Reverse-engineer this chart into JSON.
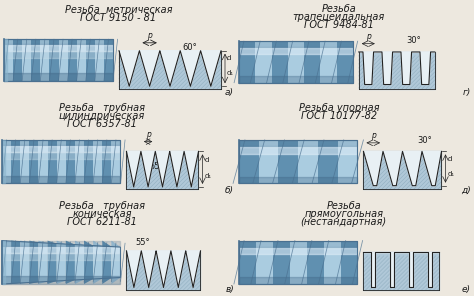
{
  "bg_color": "#ede8df",
  "text_color": "#1a1a1a",
  "line_color": "#222222",
  "sections": [
    {
      "title1": "Резьба  метрическая",
      "title2": "ГОСТ 9150 - 81",
      "title3": "",
      "angle": "60°",
      "letter": "а)",
      "col": 0,
      "row": 0
    },
    {
      "title1": "Резьба   трубная",
      "title2": "цилиндрическая",
      "title3": "ГОСТ 6357-81",
      "angle": "55°",
      "letter": "б)",
      "col": 0,
      "row": 1
    },
    {
      "title1": "Резьба   трубная",
      "title2": "коническая",
      "title3": "ГОСТ 6211-81",
      "angle": "55°",
      "letter": "в)",
      "col": 0,
      "row": 2
    },
    {
      "title1": "Резьба",
      "title2": "трапецеидальная",
      "title3": "ГОСТ 9484-81",
      "angle": "30°",
      "letter": "г)",
      "col": 1,
      "row": 0
    },
    {
      "title1": "Резьба упорная",
      "title2": "ГОСТ 10177-82",
      "title3": "",
      "angle": "30°",
      "letter": "д)",
      "col": 1,
      "row": 1
    },
    {
      "title1": "Резьба",
      "title2": "прямоугольная",
      "title3": "(нестандартная)",
      "angle": "",
      "letter": "е)",
      "col": 1,
      "row": 2
    }
  ],
  "screw_colors": {
    "base": "#8ab4cc",
    "light": "#c8dce8",
    "dark": "#4a7090",
    "highlight": "#e0eef8",
    "shadow": "#3a6080",
    "stripe_light": "#aacce0",
    "stripe_dark": "#6090b0"
  },
  "profile_colors": {
    "hatch_bg": "#b0c8d8",
    "hatch_line": "#8aaabb",
    "fill": "#d0e4f0",
    "white_bg": "#e8f0f4"
  }
}
